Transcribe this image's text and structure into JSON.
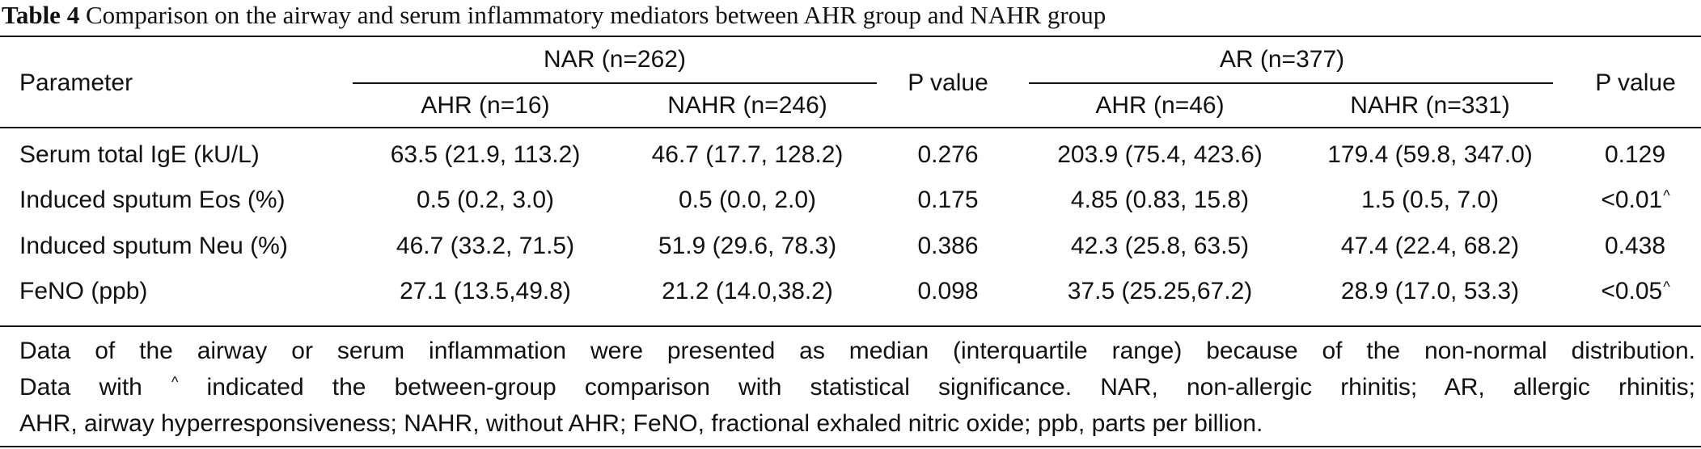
{
  "caption": {
    "label": "Table 4",
    "text": " Comparison on the airway and serum inflammatory mediators between AHR group and NAHR group"
  },
  "header": {
    "parameter": "Parameter",
    "group1": "NAR (n=262)",
    "group1_ahr": "AHR (n=16)",
    "group1_nahr": "NAHR (n=246)",
    "p1": "P value",
    "group2": "AR (n=377)",
    "group2_ahr": "AHR (n=46)",
    "group2_nahr": "NAHR (n=331)",
    "p2": "P value"
  },
  "rows": [
    {
      "parameter": "Serum total IgE (kU/L)",
      "nar_ahr": "63.5 (21.9, 113.2)",
      "nar_nahr": "46.7 (17.7, 128.2)",
      "p1": "0.276",
      "ar_ahr": "203.9 (75.4, 423.6)",
      "ar_nahr": "179.4 (59.8, 347.0)",
      "p2": "0.129",
      "p2_mark": ""
    },
    {
      "parameter": "Induced sputum Eos (%)",
      "nar_ahr": "0.5 (0.2, 3.0)",
      "nar_nahr": "0.5 (0.0, 2.0)",
      "p1": "0.175",
      "ar_ahr": "4.85 (0.83, 15.8)",
      "ar_nahr": "1.5 (0.5, 7.0)",
      "p2": "<0.01",
      "p2_mark": "^"
    },
    {
      "parameter": "Induced sputum Neu (%)",
      "nar_ahr": "46.7 (33.2, 71.5)",
      "nar_nahr": "51.9 (29.6, 78.3)",
      "p1": "0.386",
      "ar_ahr": "42.3 (25.8, 63.5)",
      "ar_nahr": "47.4 (22.4, 68.2)",
      "p2": "0.438",
      "p2_mark": ""
    },
    {
      "parameter": "FeNO (ppb)",
      "nar_ahr": "27.1 (13.5,49.8)",
      "nar_nahr": "21.2 (14.0,38.2)",
      "p1": "0.098",
      "ar_ahr": "37.5 (25.25,67.2)",
      "ar_nahr": "28.9 (17.0, 53.3)",
      "p2": "<0.05",
      "p2_mark": "^"
    }
  ],
  "footnote": {
    "line1": "Data of the airway or serum inflammation were presented as median (interquartile range) because of the non-normal distribution.",
    "line2_a": "Data with ",
    "line2_mark": "^",
    "line2_b": " indicated the between-group comparison with statistical significance. NAR, non-allergic rhinitis; AR, allergic rhinitis;",
    "line3": "AHR, airway hyperresponsiveness; NAHR, without AHR; FeNO, fractional exhaled nitric oxide; ppb, parts per billion."
  }
}
